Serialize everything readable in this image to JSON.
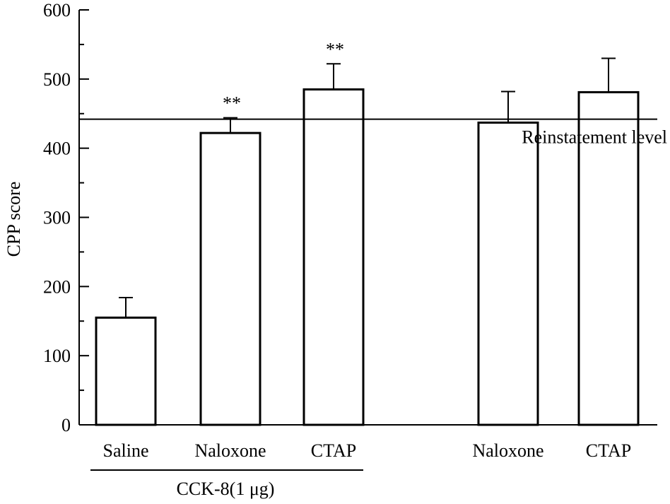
{
  "chart_data": {
    "type": "bar",
    "ylabel": "CPP score",
    "ylim": [
      0,
      600
    ],
    "yticks": [
      0,
      100,
      200,
      300,
      400,
      500,
      600
    ],
    "y_minor_step": 50,
    "categories": [
      "Saline",
      "Naloxone",
      "CTAP",
      "Naloxone",
      "CTAP"
    ],
    "values": [
      155,
      422,
      485,
      437,
      481
    ],
    "errors": [
      29,
      22,
      37,
      45,
      49
    ],
    "significance": [
      "",
      "**",
      "**",
      "",
      ""
    ],
    "bar_fill": "#ffffff",
    "bar_stroke": "#000000",
    "reference_line": {
      "value": 442,
      "label": "Reinstatement level"
    },
    "group_label": {
      "text": "CCK-8(1 μg)",
      "categories": [
        0,
        1,
        2
      ]
    }
  }
}
